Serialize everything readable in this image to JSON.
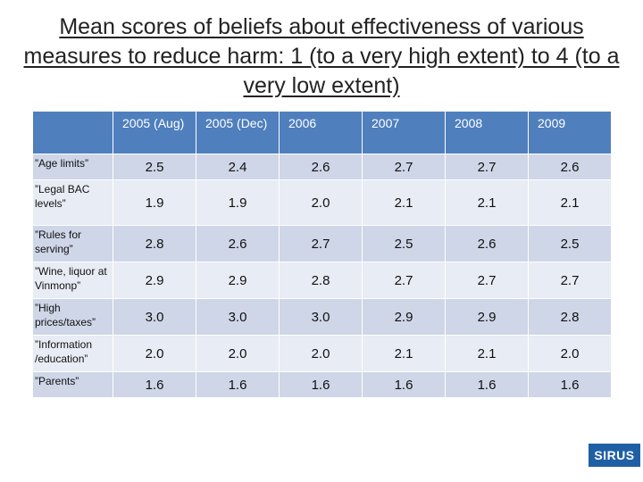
{
  "title": "Mean scores of beliefs about effectiveness of various measures to reduce harm: 1 (to a very high extent) to 4 (to a very low extent)",
  "table": {
    "headers": [
      "",
      "2005 (Aug)",
      "2005 (Dec)",
      "2006",
      "2007",
      "2008",
      "2009"
    ],
    "rows": [
      {
        "label": "”Age limits”",
        "values": [
          "2.5",
          "2.4",
          "2.6",
          "2.7",
          "2.7",
          "2.6"
        ]
      },
      {
        "label": "”Legal BAC levels”",
        "values": [
          "1.9",
          "1.9",
          "2.0",
          "2.1",
          "2.1",
          "2.1"
        ]
      },
      {
        "label": "”Rules for serving”",
        "values": [
          "2.8",
          "2.6",
          "2.7",
          "2.5",
          "2.6",
          "2.5"
        ]
      },
      {
        "label": "”Wine, liquor at Vinmonp”",
        "values": [
          "2.9",
          "2.9",
          "2.8",
          "2.7",
          "2.7",
          "2.7"
        ]
      },
      {
        "label": "”High prices/taxes”",
        "values": [
          "3.0",
          "3.0",
          "3.0",
          "2.9",
          "2.9",
          "2.8"
        ]
      },
      {
        "label": "”Information /education”",
        "values": [
          "2.0",
          "2.0",
          "2.0",
          "2.1",
          "2.1",
          "2.0"
        ]
      },
      {
        "label": "”Parents”",
        "values": [
          "1.6",
          "1.6",
          "1.6",
          "1.6",
          "1.6",
          "1.6"
        ]
      }
    ]
  },
  "logo": {
    "text": "SIRUS"
  },
  "colors": {
    "header": "#4f7fbd",
    "row_odd": "#ced6e7",
    "row_even": "#e8ecf4",
    "logo": "#1f5fa5"
  }
}
